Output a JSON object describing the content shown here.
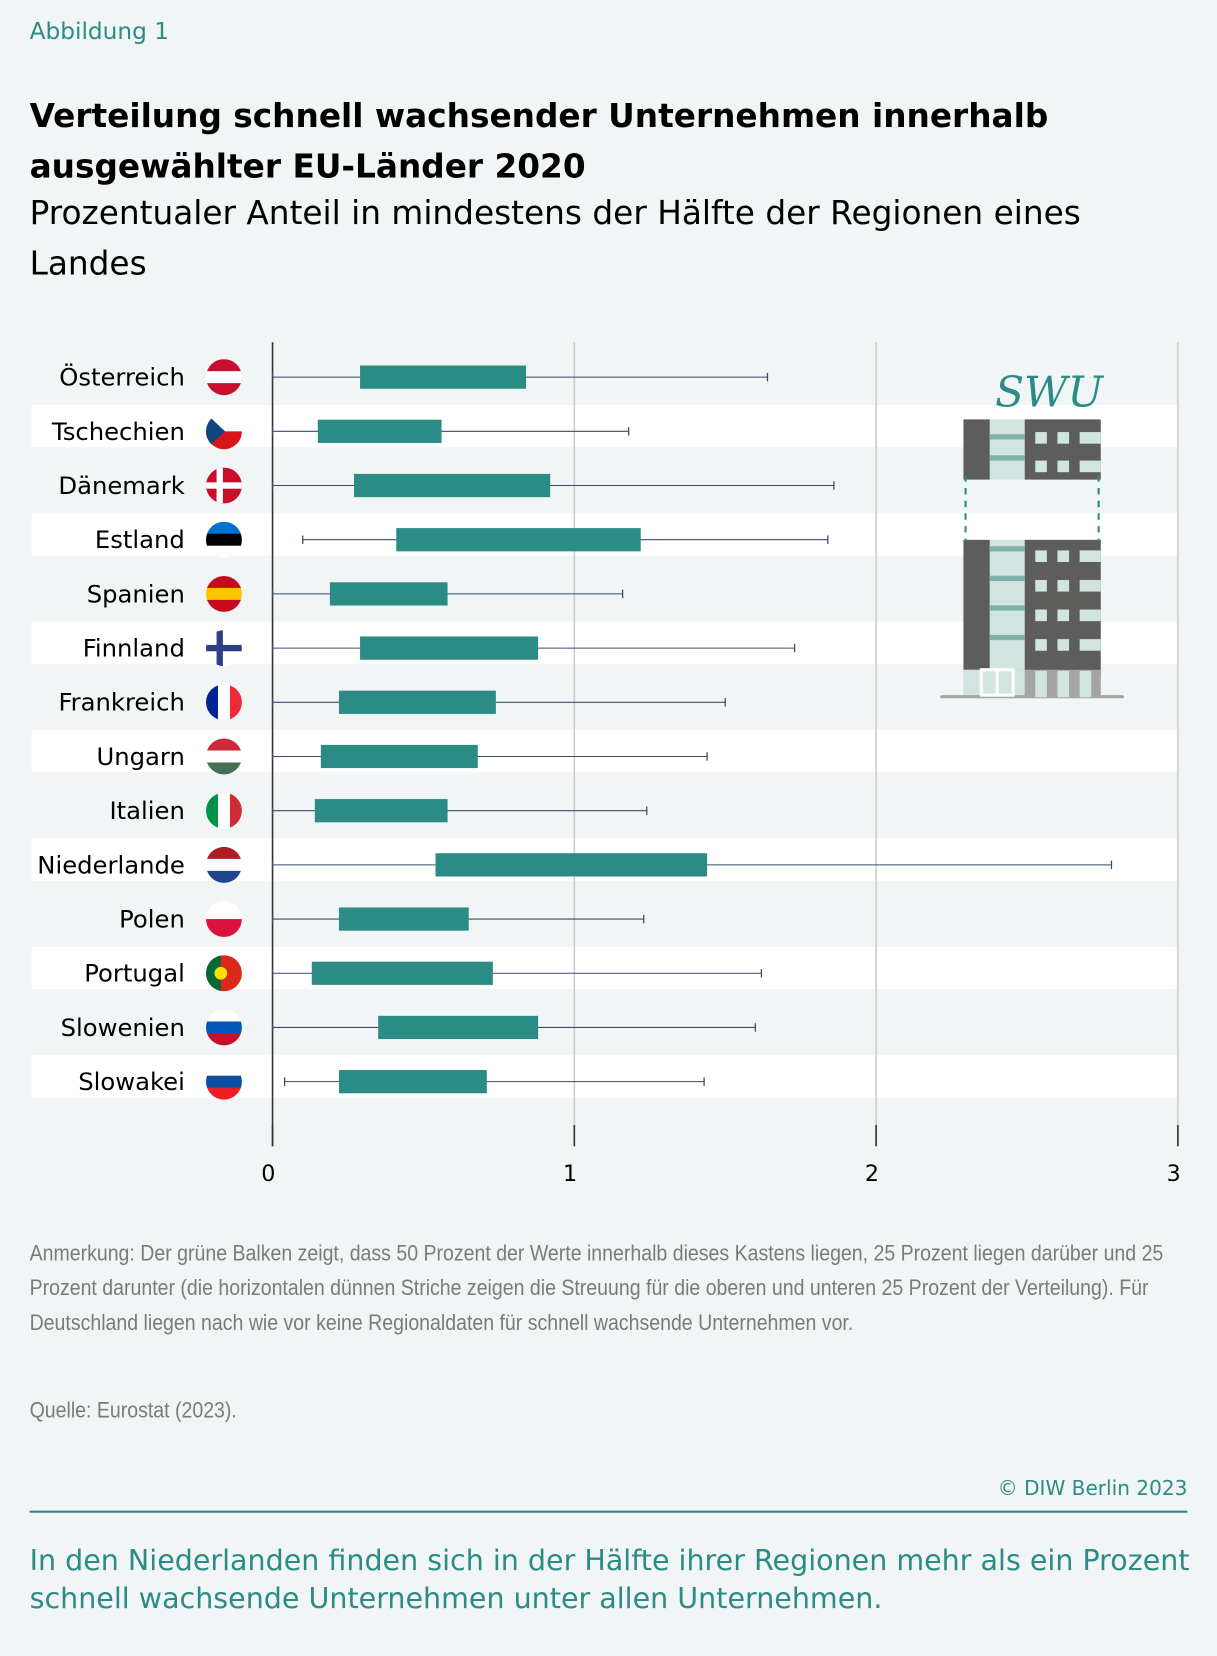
{
  "figure_label": "Abbildung 1",
  "title": "Verteilung schnell wachsender Unternehmen innerhalb ausgewählter EU-Länder 2020",
  "subtitle": "Prozentualer Anteil in mindestens der Hälfte der Regionen eines Landes",
  "chart_data": {
    "type": "boxplot-horizontal",
    "xlim": [
      0,
      3
    ],
    "xticks": [
      "0",
      "1",
      "2",
      "3"
    ],
    "grid": true,
    "colors": {
      "box": "#2a8c84",
      "whisker": "#3a4a6b",
      "grid": "#cccccc",
      "band": "#ffffff"
    },
    "categories": [
      "Österreich",
      "Tschechien",
      "Dänemark",
      "Estland",
      "Spanien",
      "Finnland",
      "Frankreich",
      "Ungarn",
      "Italien",
      "Niederlande",
      "Polen",
      "Portugal",
      "Slowenien",
      "Slowakei"
    ],
    "flags": [
      "at",
      "cz",
      "dk",
      "ee",
      "es",
      "fi",
      "fr",
      "hu",
      "it",
      "nl",
      "pl",
      "pt",
      "si",
      "sk"
    ],
    "series": [
      {
        "min": 0,
        "q1": 0.29,
        "q3": 0.84,
        "max": 1.64
      },
      {
        "min": 0,
        "q1": 0.15,
        "q3": 0.56,
        "max": 1.18
      },
      {
        "min": 0,
        "q1": 0.27,
        "q3": 0.92,
        "max": 1.86
      },
      {
        "min": 0.1,
        "q1": 0.41,
        "q3": 1.22,
        "max": 1.84
      },
      {
        "min": 0,
        "q1": 0.19,
        "q3": 0.58,
        "max": 1.16
      },
      {
        "min": 0,
        "q1": 0.29,
        "q3": 0.88,
        "max": 1.73
      },
      {
        "min": 0,
        "q1": 0.22,
        "q3": 0.74,
        "max": 1.5
      },
      {
        "min": 0,
        "q1": 0.16,
        "q3": 0.68,
        "max": 1.44
      },
      {
        "min": 0,
        "q1": 0.14,
        "q3": 0.58,
        "max": 1.24
      },
      {
        "min": 0,
        "q1": 0.54,
        "q3": 1.44,
        "max": 2.78
      },
      {
        "min": 0,
        "q1": 0.22,
        "q3": 0.65,
        "max": 1.23
      },
      {
        "min": 0,
        "q1": 0.13,
        "q3": 0.73,
        "max": 1.62
      },
      {
        "min": 0,
        "q1": 0.35,
        "q3": 0.88,
        "max": 1.6
      },
      {
        "min": 0.04,
        "q1": 0.22,
        "q3": 0.71,
        "max": 1.43
      }
    ]
  },
  "logo_text": "SWU",
  "note": "Anmerkung: Der grüne Balken zeigt, dass 50 Prozent der Werte innerhalb dieses Kastens liegen, 25 Prozent liegen darüber und 25 Prozent darunter (die horizontalen dünnen Striche zeigen die Streuung für die oberen und unteren 25 Prozent der Verteilung). Für Deutschland liegen nach wie vor keine Regionaldaten für schnell wachsende Unternehmen vor.",
  "source": "Quelle: Eurostat (2023).",
  "copyright": "© DIW Berlin 2023",
  "takeaway": "In den Niederlanden finden sich in der Hälfte ihrer Regionen mehr als ein Prozent schnell wachsende Unternehmen unter allen Unternehmen."
}
